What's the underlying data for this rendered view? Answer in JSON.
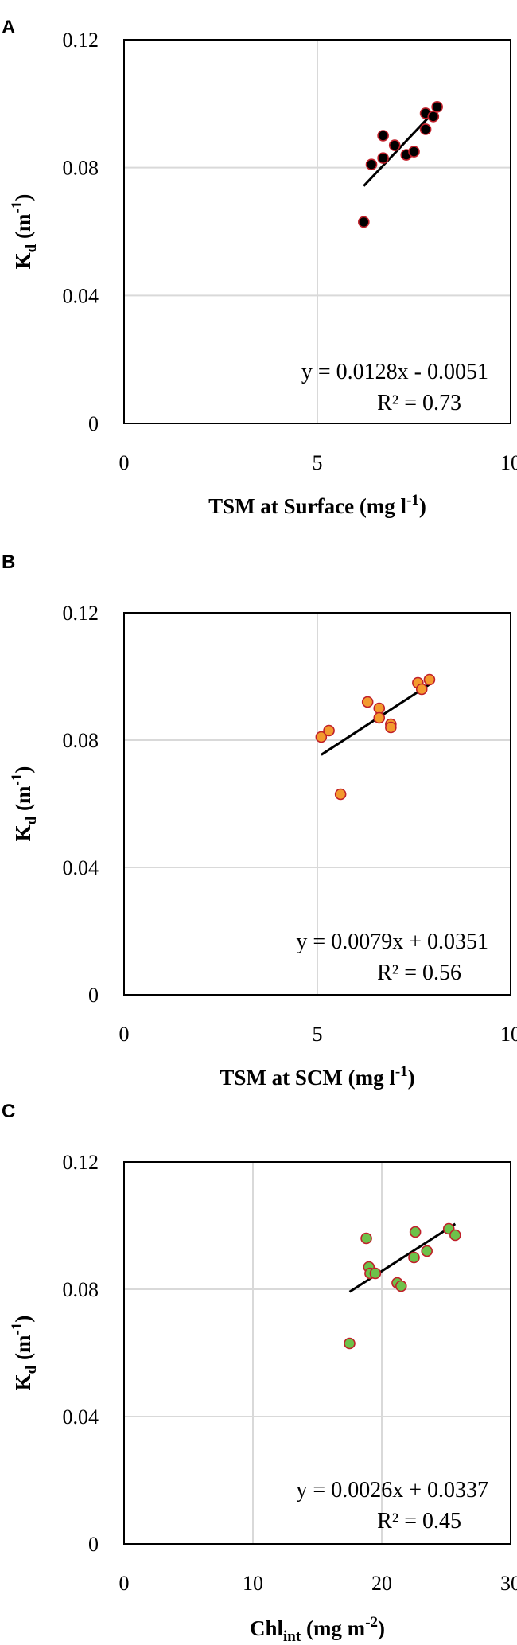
{
  "chart_data": [
    {
      "type": "scatter",
      "panel": "A",
      "xlabel": {
        "main": "TSM at Surface (mg l",
        "sup": "-1",
        "tail": ")"
      },
      "ylabel": {
        "main": "K",
        "sub": "d",
        "rest": " (m",
        "sup": "-1",
        "tail": ")"
      },
      "xlim": [
        0,
        10
      ],
      "ylim": [
        0,
        0.12
      ],
      "xticks": [
        "0",
        "5",
        "10"
      ],
      "yticks": [
        "0",
        "0.04",
        "0.08",
        "0.12"
      ],
      "grid": true,
      "marker": {
        "fill": "#000000",
        "stroke": "#c0202a"
      },
      "points": [
        {
          "x": 6.2,
          "y": 0.063
        },
        {
          "x": 6.4,
          "y": 0.081
        },
        {
          "x": 6.7,
          "y": 0.083
        },
        {
          "x": 6.7,
          "y": 0.09
        },
        {
          "x": 7.0,
          "y": 0.087
        },
        {
          "x": 7.3,
          "y": 0.084
        },
        {
          "x": 7.5,
          "y": 0.085
        },
        {
          "x": 7.8,
          "y": 0.092
        },
        {
          "x": 7.8,
          "y": 0.097
        },
        {
          "x": 8.0,
          "y": 0.096
        },
        {
          "x": 8.1,
          "y": 0.099
        }
      ],
      "trendline": {
        "slope": 0.0128,
        "intercept": -0.0051,
        "x_range": [
          6.2,
          8.1
        ]
      },
      "equation": "y = 0.0128x - 0.0051",
      "r2_label": "R² = 0.73"
    },
    {
      "type": "scatter",
      "panel": "B",
      "xlabel": {
        "main": "TSM at SCM (mg l",
        "sup": "-1",
        "tail": ")"
      },
      "ylabel": {
        "main": "K",
        "sub": "d",
        "rest": " (m",
        "sup": "-1",
        "tail": ")"
      },
      "xlim": [
        0,
        10
      ],
      "ylim": [
        0,
        0.12
      ],
      "xticks": [
        "0",
        "5",
        "10"
      ],
      "yticks": [
        "0",
        "0.04",
        "0.08",
        "0.12"
      ],
      "grid": true,
      "marker": {
        "fill": "#f39a2e",
        "stroke": "#c0202a"
      },
      "points": [
        {
          "x": 5.1,
          "y": 0.081
        },
        {
          "x": 5.3,
          "y": 0.083
        },
        {
          "x": 5.6,
          "y": 0.063
        },
        {
          "x": 6.3,
          "y": 0.092
        },
        {
          "x": 6.6,
          "y": 0.09
        },
        {
          "x": 6.6,
          "y": 0.087
        },
        {
          "x": 6.9,
          "y": 0.085
        },
        {
          "x": 6.9,
          "y": 0.084
        },
        {
          "x": 7.6,
          "y": 0.098
        },
        {
          "x": 7.7,
          "y": 0.096
        },
        {
          "x": 7.9,
          "y": 0.099
        }
      ],
      "trendline": {
        "slope": 0.0079,
        "intercept": 0.0351,
        "x_range": [
          5.1,
          7.9
        ]
      },
      "equation": "y = 0.0079x + 0.0351",
      "r2_label": "R² = 0.56"
    },
    {
      "type": "scatter",
      "panel": "C",
      "xlabel": {
        "main": "Chl",
        "sub": "int",
        "rest": " (mg m",
        "sup": "-2",
        "tail": ")"
      },
      "ylabel": {
        "main": "K",
        "sub": "d",
        "rest": " (m",
        "sup": "-1",
        "tail": ")"
      },
      "xlim": [
        0,
        30
      ],
      "ylim": [
        0,
        0.12
      ],
      "xticks": [
        "0",
        "10",
        "20",
        "30"
      ],
      "yticks": [
        "0",
        "0.04",
        "0.08",
        "0.12"
      ],
      "grid": true,
      "marker": {
        "fill": "#6cc24a",
        "stroke": "#c0202a"
      },
      "points": [
        {
          "x": 17.5,
          "y": 0.063
        },
        {
          "x": 18.8,
          "y": 0.096
        },
        {
          "x": 19.0,
          "y": 0.087
        },
        {
          "x": 19.1,
          "y": 0.085
        },
        {
          "x": 19.5,
          "y": 0.085
        },
        {
          "x": 21.2,
          "y": 0.082
        },
        {
          "x": 21.5,
          "y": 0.081
        },
        {
          "x": 22.5,
          "y": 0.09
        },
        {
          "x": 22.6,
          "y": 0.098
        },
        {
          "x": 23.5,
          "y": 0.092
        },
        {
          "x": 25.2,
          "y": 0.099
        },
        {
          "x": 25.7,
          "y": 0.097
        }
      ],
      "trendline": {
        "slope": 0.0026,
        "intercept": 0.0337,
        "x_range": [
          17.5,
          25.7
        ]
      },
      "equation": "y = 0.0026x + 0.0337",
      "r2_label": "R² = 0.45"
    }
  ]
}
